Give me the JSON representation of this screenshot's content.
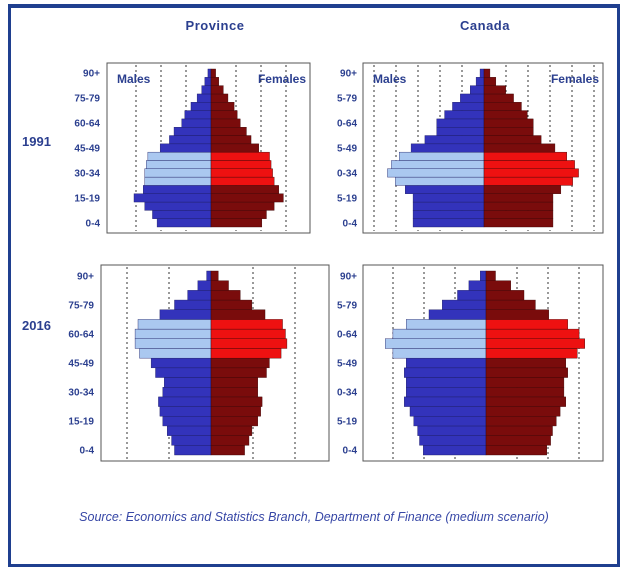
{
  "headers": {
    "province": "Province",
    "canada": "Canada"
  },
  "years": [
    "1991",
    "2016"
  ],
  "source": "Source: Economics and Statistics Branch, Department of Finance (medium scenario)",
  "colors": {
    "male_dark": "#3333bb",
    "male_light": "#aac8f0",
    "female_dark": "#7a0c0c",
    "female_light": "#ee1111",
    "text": "#2b3f8f"
  },
  "chart_data": [
    {
      "type": "bar",
      "panel": "Province 1991",
      "sex_labels": [
        "Males",
        "Females"
      ],
      "tick_labels": [
        "90+",
        "75-79",
        "60-64",
        "45-49",
        "30-34",
        "15-19",
        "0-4"
      ],
      "age_groups": [
        "0-4",
        "5-9",
        "10-14",
        "15-19",
        "20-24",
        "25-29",
        "30-34",
        "35-39",
        "40-44",
        "45-49",
        "50-54",
        "55-59",
        "60-64",
        "65-69",
        "70-74",
        "75-79",
        "80-84",
        "85-89",
        "90+"
      ],
      "highlight_groups": [
        "25-29",
        "30-34",
        "35-39",
        "40-44"
      ],
      "series": [
        {
          "name": "Males",
          "values": [
            3.5,
            3.8,
            4.3,
            5.0,
            4.4,
            4.3,
            4.3,
            4.2,
            4.1,
            3.3,
            2.7,
            2.4,
            1.9,
            1.7,
            1.3,
            0.9,
            0.6,
            0.4,
            0.2
          ]
        },
        {
          "name": "Females",
          "values": [
            3.3,
            3.6,
            4.1,
            4.7,
            4.4,
            4.1,
            4.0,
            3.9,
            3.8,
            3.1,
            2.6,
            2.3,
            1.9,
            1.7,
            1.5,
            1.1,
            0.8,
            0.5,
            0.3
          ]
        }
      ]
    },
    {
      "type": "bar",
      "panel": "Canada 1991",
      "sex_labels": [
        "Males",
        "Females"
      ],
      "tick_labels": [
        "90+",
        "5-79",
        "0-64",
        "5-49",
        "0-34",
        "5-19",
        "0-4"
      ],
      "age_groups": [
        "0-4",
        "5-9",
        "10-14",
        "15-19",
        "20-24",
        "25-29",
        "30-34",
        "35-39",
        "40-44",
        "45-49",
        "50-54",
        "55-59",
        "60-64",
        "65-69",
        "70-74",
        "75-79",
        "80-84",
        "85-89",
        "90+"
      ],
      "highlight_groups": [
        "25-29",
        "30-34",
        "35-39",
        "40-44"
      ],
      "series": [
        {
          "name": "Males",
          "values": [
            3.6,
            3.6,
            3.6,
            3.6,
            4.0,
            4.5,
            4.9,
            4.7,
            4.3,
            3.7,
            3.0,
            2.4,
            2.4,
            2.0,
            1.6,
            1.2,
            0.7,
            0.4,
            0.2
          ]
        },
        {
          "name": "Females",
          "values": [
            3.5,
            3.5,
            3.5,
            3.5,
            3.9,
            4.5,
            4.8,
            4.6,
            4.2,
            3.6,
            2.9,
            2.5,
            2.5,
            2.2,
            1.9,
            1.5,
            1.1,
            0.6,
            0.3
          ]
        }
      ]
    },
    {
      "type": "bar",
      "panel": "Province 2016",
      "tick_labels": [
        "90+",
        "75-79",
        "60-64",
        "45-49",
        "30-34",
        "15-19",
        "0-4"
      ],
      "age_groups": [
        "0-4",
        "5-9",
        "10-14",
        "15-19",
        "20-24",
        "25-29",
        "30-34",
        "35-39",
        "40-44",
        "45-49",
        "50-54",
        "55-59",
        "60-64",
        "65-69",
        "70-74",
        "75-79",
        "80-84",
        "85-89",
        "90+"
      ],
      "highlight_groups": [
        "50-54",
        "55-59",
        "60-64",
        "65-69"
      ],
      "series": [
        {
          "name": "Males",
          "values": [
            2.5,
            2.7,
            3.0,
            3.3,
            3.5,
            3.6,
            3.3,
            3.2,
            3.8,
            4.1,
            4.9,
            5.2,
            5.2,
            5.0,
            3.5,
            2.5,
            1.6,
            0.9,
            0.3
          ]
        },
        {
          "name": "Females",
          "values": [
            2.3,
            2.6,
            2.8,
            3.2,
            3.4,
            3.5,
            3.2,
            3.2,
            3.8,
            4.0,
            4.8,
            5.2,
            5.1,
            4.9,
            3.7,
            2.8,
            2.0,
            1.2,
            0.5
          ]
        }
      ]
    },
    {
      "type": "bar",
      "panel": "Canada 2016",
      "tick_labels": [
        "90+",
        "5-79",
        "0-64",
        "5-49",
        "0-34",
        "5-19",
        "0-4"
      ],
      "age_groups": [
        "0-4",
        "5-9",
        "10-14",
        "15-19",
        "20-24",
        "25-29",
        "30-34",
        "35-39",
        "40-44",
        "45-49",
        "50-54",
        "55-59",
        "60-64",
        "65-69",
        "70-74",
        "75-79",
        "80-84",
        "85-89",
        "90+"
      ],
      "highlight_groups": [
        "50-54",
        "55-59",
        "60-64",
        "65-69"
      ],
      "series": [
        {
          "name": "Males",
          "values": [
            3.3,
            3.5,
            3.6,
            3.8,
            4.0,
            4.3,
            4.2,
            4.2,
            4.3,
            4.2,
            4.9,
            5.3,
            4.9,
            4.2,
            3.0,
            2.3,
            1.5,
            0.9,
            0.3
          ]
        },
        {
          "name": "Females",
          "values": [
            3.2,
            3.4,
            3.5,
            3.7,
            3.9,
            4.2,
            4.1,
            4.1,
            4.3,
            4.2,
            4.8,
            5.2,
            4.9,
            4.3,
            3.3,
            2.6,
            2.0,
            1.3,
            0.5
          ]
        }
      ]
    }
  ]
}
